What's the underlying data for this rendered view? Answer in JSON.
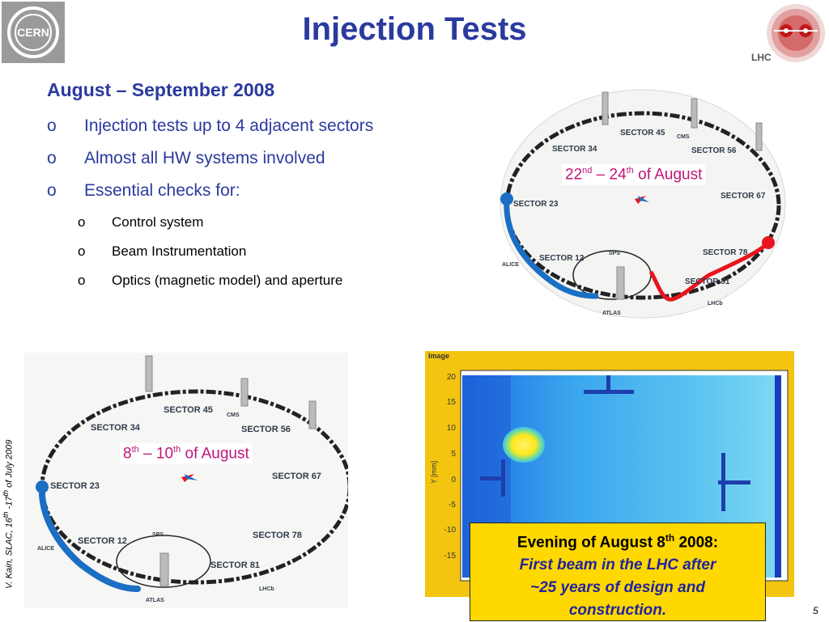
{
  "slide": {
    "title": "Injection Tests",
    "logo_right_text": "LHC",
    "subtitle": "August – September 2008",
    "bullets": [
      {
        "marker": "o",
        "text": "Injection tests up to 4 adjacent sectors"
      },
      {
        "marker": "o",
        "text": "Almost all HW systems involved"
      },
      {
        "marker": "o",
        "text": "Essential checks for:"
      }
    ],
    "sub_bullets": [
      {
        "marker": "o",
        "text": "Control system"
      },
      {
        "marker": "o",
        "text": "Beam Instrumentation"
      },
      {
        "marker": "o",
        "text": "Optics (magnetic model) and aperture"
      }
    ],
    "side_credit": {
      "author": "V. Kain, SLAC, 16",
      "sup1": "th",
      "mid": " -17",
      "sup2": "th",
      "end": " of July 2009"
    },
    "page_number": "5"
  },
  "map_top": {
    "labels": {
      "s45": "SECTOR 45",
      "s34": "SECTOR 34",
      "s56": "SECTOR 56",
      "s67": "SECTOR 67",
      "s23": "SECTOR 23",
      "s12": "SECTOR 12",
      "s78": "SECTOR 78",
      "s81": "SECTOR 81",
      "cms": "CMS",
      "sps": "SPS",
      "alice": "ALICE",
      "atlas": "ATLAS",
      "lhcb": "LHCb"
    },
    "date": {
      "d1": "22",
      "s1": "nd",
      "mid": " – 24",
      "s2": "th",
      "end": " of August"
    }
  },
  "map_bottom": {
    "labels": {
      "s45": "SECTOR 45",
      "s34": "SECTOR 34",
      "s56": "SECTOR 56",
      "s67": "SECTOR 67",
      "s23": "SECTOR 23",
      "s12": "SECTOR 12",
      "s78": "SECTOR 78",
      "s81": "SECTOR 81",
      "cms": "CMS",
      "sps": "SPS",
      "alice": "ALICE",
      "atlas": "ATLAS",
      "lhcb": "LHCb"
    },
    "date": {
      "d1": "8",
      "s1": "th",
      "mid": " – 10",
      "s2": "th",
      "end": " of August"
    }
  },
  "beam_image": {
    "title": "Image",
    "ylabel": "Y [mm]",
    "yticks": [
      "20",
      "15",
      "10",
      "5",
      "0",
      "-5",
      "-10",
      "-15"
    ],
    "caption": {
      "line1": "Evening of August 8",
      "sup": "th",
      "line1_end": " 2008:",
      "line2": "First beam in the LHC after",
      "line3": "~25 years of design and",
      "line4": "construction."
    }
  },
  "colors": {
    "title": "#2b3a9e",
    "date_text": "#c0157a",
    "beam_blue": "#1a6fc4",
    "beam_red": "#e8141e",
    "caption_bg": "#ffd800"
  }
}
